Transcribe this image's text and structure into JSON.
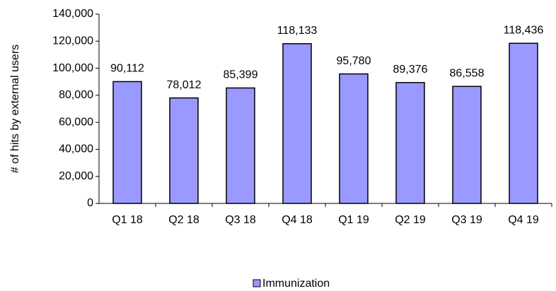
{
  "chart_data": {
    "type": "bar",
    "y_label": "# of hits by external users",
    "categories": [
      "Q1 18",
      "Q2 18",
      "Q3 18",
      "Q4 18",
      "Q1 19",
      "Q2 19",
      "Q3 19",
      "Q4 19"
    ],
    "series": [
      {
        "name": "Immunization",
        "color": "#9999ff",
        "values": [
          90112,
          78012,
          85399,
          118133,
          95780,
          89376,
          86558,
          118436
        ],
        "value_labels": [
          "90,112",
          "78,012",
          "85,399",
          "118,133",
          "95,780",
          "89,376",
          "86,558",
          "118,436"
        ]
      }
    ],
    "ylim": [
      0,
      140000
    ],
    "yticks": [
      0,
      {
        "value": 20000,
        "label": "20,000"
      },
      {
        "value": 40000,
        "label": "40,000"
      },
      {
        "value": 60000,
        "label": "60,000"
      },
      {
        "value": 80000,
        "label": "80,000"
      },
      {
        "value": 100000,
        "label": "100,000"
      },
      {
        "value": 120000,
        "label": "120,000"
      },
      {
        "value": 140000,
        "label": "140,000"
      }
    ],
    "legend": "bottom"
  }
}
